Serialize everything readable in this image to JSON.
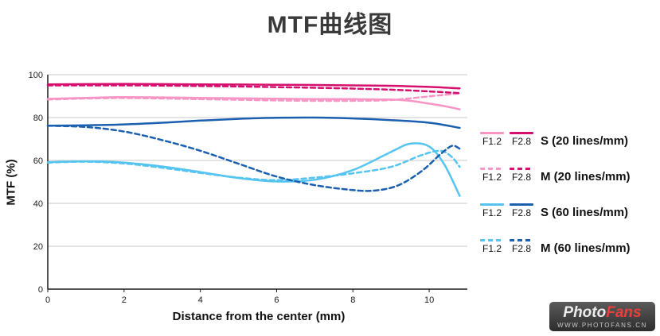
{
  "title": "MTF曲线图",
  "chart_data": {
    "type": "line",
    "title": "MTF曲线图",
    "xlabel": "Distance from the center (mm)",
    "ylabel": "MTF (%)",
    "xlim": [
      0,
      11
    ],
    "ylim": [
      0,
      100
    ],
    "x_ticks": [
      0,
      2,
      4,
      6,
      8,
      10
    ],
    "y_ticks": [
      0,
      20,
      40,
      60,
      80,
      100
    ],
    "grid": "horizontal",
    "legend_position": "right",
    "colors": {
      "grid": "#c9c9c9",
      "axis": "#1a1a1a"
    },
    "series": [
      {
        "name": "F1.2 S (20 lines/mm)",
        "color": "#f795c5",
        "dashed": false,
        "points": [
          [
            0,
            88.7
          ],
          [
            1,
            89.2
          ],
          [
            2,
            89.5
          ],
          [
            3,
            89.4
          ],
          [
            4,
            89.2
          ],
          [
            5,
            89.0
          ],
          [
            6,
            88.8
          ],
          [
            7,
            88.6
          ],
          [
            8,
            88.6
          ],
          [
            9,
            88.4
          ],
          [
            9.5,
            87.8
          ],
          [
            10,
            86.5
          ],
          [
            10.5,
            85.0
          ],
          [
            10.8,
            83.8
          ]
        ]
      },
      {
        "name": "F1.2 M (20 lines/mm)",
        "color": "#f795c5",
        "dashed": true,
        "points": [
          [
            0,
            88.4
          ],
          [
            1,
            88.9
          ],
          [
            2,
            89.1
          ],
          [
            3,
            88.9
          ],
          [
            4,
            88.6
          ],
          [
            5,
            88.3
          ],
          [
            6,
            88.0
          ],
          [
            7,
            87.8
          ],
          [
            8,
            87.8
          ],
          [
            9,
            88.2
          ],
          [
            9.8,
            89.5
          ],
          [
            10.4,
            90.6
          ],
          [
            10.8,
            91.2
          ]
        ]
      },
      {
        "name": "F2.8 S (20 lines/mm)",
        "color": "#d60f6f",
        "dashed": false,
        "points": [
          [
            0,
            95.5
          ],
          [
            1,
            95.6
          ],
          [
            2,
            95.7
          ],
          [
            3,
            95.6
          ],
          [
            4,
            95.5
          ],
          [
            5,
            95.4
          ],
          [
            6,
            95.3
          ],
          [
            7,
            95.2
          ],
          [
            8,
            95.0
          ],
          [
            9,
            94.8
          ],
          [
            10,
            94.3
          ],
          [
            10.8,
            93.6
          ]
        ]
      },
      {
        "name": "F2.8 M (20 lines/mm)",
        "color": "#d60f6f",
        "dashed": true,
        "points": [
          [
            0,
            95.0
          ],
          [
            1,
            95.0
          ],
          [
            2,
            95.0
          ],
          [
            3,
            94.9
          ],
          [
            4,
            94.7
          ],
          [
            5,
            94.5
          ],
          [
            6,
            94.2
          ],
          [
            7,
            93.9
          ],
          [
            8,
            93.5
          ],
          [
            9,
            93.0
          ],
          [
            10,
            92.2
          ],
          [
            10.8,
            91.4
          ]
        ]
      },
      {
        "name": "F1.2 S (60 lines/mm)",
        "color": "#55c4f0",
        "dashed": false,
        "points": [
          [
            0,
            59.2
          ],
          [
            1,
            59.6
          ],
          [
            2,
            59.0
          ],
          [
            3,
            57.2
          ],
          [
            4,
            54.6
          ],
          [
            5,
            51.8
          ],
          [
            6,
            50.2
          ],
          [
            7,
            51.0
          ],
          [
            8,
            55.5
          ],
          [
            9,
            64.0
          ],
          [
            9.5,
            67.8
          ],
          [
            10,
            66.5
          ],
          [
            10.4,
            58.0
          ],
          [
            10.8,
            43.5
          ]
        ]
      },
      {
        "name": "F1.2 M (60 lines/mm)",
        "color": "#55c4f0",
        "dashed": true,
        "points": [
          [
            0,
            59.0
          ],
          [
            1,
            59.4
          ],
          [
            2,
            58.6
          ],
          [
            3,
            56.6
          ],
          [
            4,
            54.2
          ],
          [
            5,
            52.0
          ],
          [
            6,
            50.8
          ],
          [
            7,
            52.0
          ],
          [
            8,
            54.0
          ],
          [
            9,
            57.0
          ],
          [
            9.8,
            62.5
          ],
          [
            10.3,
            64.5
          ],
          [
            10.6,
            61.5
          ],
          [
            10.8,
            57.0
          ]
        ]
      },
      {
        "name": "F2.8 S (60 lines/mm)",
        "color": "#1b5faf",
        "dashed": false,
        "points": [
          [
            0,
            76.2
          ],
          [
            1,
            76.4
          ],
          [
            2,
            76.8
          ],
          [
            3,
            77.6
          ],
          [
            4,
            78.6
          ],
          [
            5,
            79.4
          ],
          [
            6,
            79.9
          ],
          [
            7,
            80.0
          ],
          [
            8,
            79.6
          ],
          [
            9,
            78.8
          ],
          [
            10,
            77.6
          ],
          [
            10.8,
            75.2
          ]
        ]
      },
      {
        "name": "F2.8 M (60 lines/mm)",
        "color": "#1b5faf",
        "dashed": true,
        "points": [
          [
            0,
            76.2
          ],
          [
            1,
            75.6
          ],
          [
            2,
            73.5
          ],
          [
            3,
            69.5
          ],
          [
            4,
            64.5
          ],
          [
            5,
            58.5
          ],
          [
            6,
            52.5
          ],
          [
            7,
            48.5
          ],
          [
            8,
            46.2
          ],
          [
            8.6,
            46.0
          ],
          [
            9.2,
            48.5
          ],
          [
            9.8,
            55.0
          ],
          [
            10.3,
            63.0
          ],
          [
            10.6,
            66.8
          ],
          [
            10.8,
            65.5
          ]
        ]
      }
    ]
  },
  "legend": {
    "items": [
      {
        "f12_label": "F1.2",
        "f28_label": "F2.8",
        "label": "S (20 lines/mm)",
        "light_color": "#f795c5",
        "dark_color": "#d60f6f",
        "dashed": false
      },
      {
        "f12_label": "F1.2",
        "f28_label": "F2.8",
        "label": "M (20 lines/mm)",
        "light_color": "#f795c5",
        "dark_color": "#d60f6f",
        "dashed": true
      },
      {
        "f12_label": "F1.2",
        "f28_label": "F2.8",
        "label": "S (60 lines/mm)",
        "light_color": "#55c4f0",
        "dark_color": "#1b5faf",
        "dashed": false
      },
      {
        "f12_label": "F1.2",
        "f28_label": "F2.8",
        "label": "M (60 lines/mm)",
        "light_color": "#55c4f0",
        "dark_color": "#1b5faf",
        "dashed": true
      }
    ]
  },
  "logo": {
    "part1": "Photo",
    "part2": "Fans",
    "url": "WWW.PHOTOFANS.CN"
  }
}
